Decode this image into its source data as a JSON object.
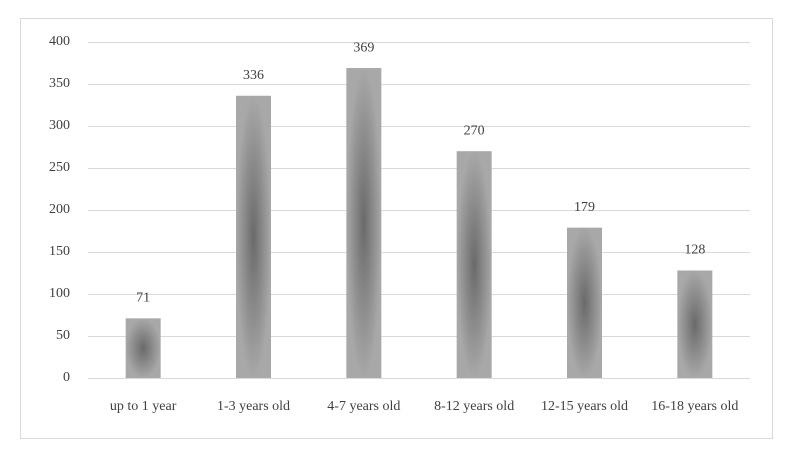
{
  "chart_data": {
    "type": "bar",
    "categories": [
      "up to 1 year",
      "1-3 years old",
      "4-7 years old",
      "8-12 years old",
      "12-15 years old",
      "16-18 years old"
    ],
    "values": [
      71,
      336,
      369,
      270,
      179,
      128
    ],
    "color": "#a8a8a8",
    "ylim": [
      0,
      400
    ],
    "yticks": [
      0,
      50,
      100,
      150,
      200,
      250,
      300,
      350,
      400
    ],
    "grid": true
  }
}
